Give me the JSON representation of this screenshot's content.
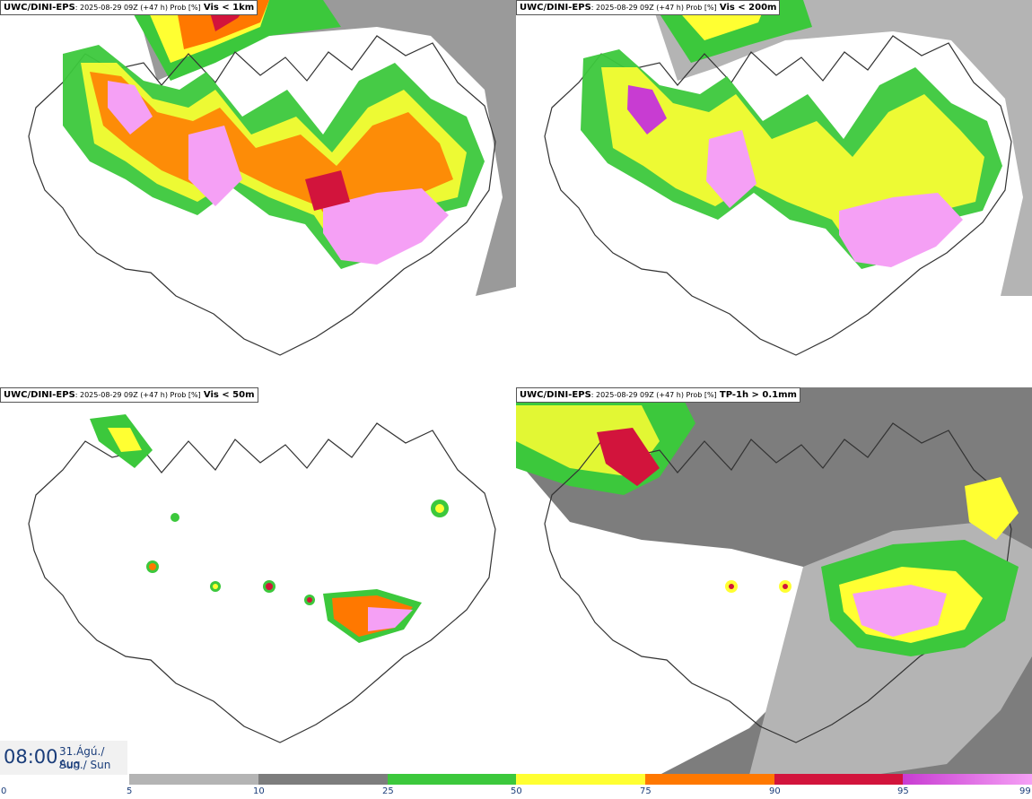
{
  "panels": [
    {
      "model": "UWC/DINI-EPS",
      "meta": ": 2025-08-29 09Z (+47 h) Prob [%]",
      "condition": "Vis < 1km"
    },
    {
      "model": "UWC/DINI-EPS",
      "meta": ": 2025-08-29 09Z (+47 h) Prob [%]",
      "condition": "Vis < 200m"
    },
    {
      "model": "UWC/DINI-EPS",
      "meta": ": 2025-08-29 09Z (+47 h) Prob [%]",
      "condition": "Vis < 50m"
    },
    {
      "model": "UWC/DINI-EPS",
      "meta": ": 2025-08-29 09Z (+47 h) Prob [%]",
      "condition": "TP-1h > 0.1mm"
    }
  ],
  "valid_time": {
    "time": "08:00",
    "date": "31.Ágú./ Aug",
    "day": "Sun./ Sun"
  },
  "legend": {
    "labels": [
      "0",
      "5",
      "10",
      "25",
      "50",
      "75",
      "90",
      "95",
      "99"
    ],
    "colors": [
      "#ffffff",
      "#b4b4b4",
      "#7d7d7d",
      "#3cc83c",
      "#ffff32",
      "#ff7800",
      "#d2143c",
      "#c83cd2",
      "#f5a0f5"
    ]
  }
}
